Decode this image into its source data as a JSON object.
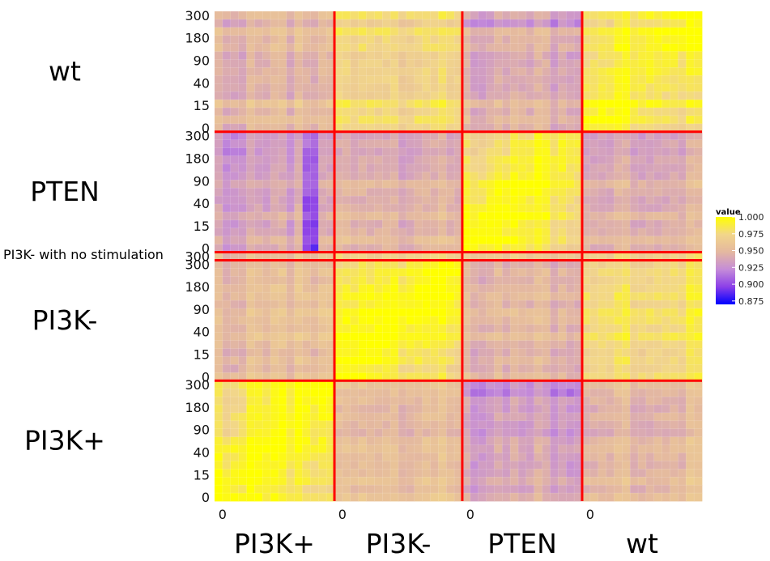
{
  "chart_data": {
    "type": "heatmap",
    "title": "",
    "xlabel": "",
    "ylabel": "",
    "groups": [
      "PI3K+",
      "PI3K-",
      "PTEN",
      "wt"
    ],
    "row_groups_bottom_to_top": [
      {
        "name": "PI3K+",
        "label": "PI3K+",
        "cells": 15,
        "ticks": [
          "0",
          "15",
          "40",
          "90",
          "180",
          "300"
        ]
      },
      {
        "name": "PI3K-",
        "label": "PI3K-",
        "cells": 15,
        "ticks": [
          "0",
          "15",
          "40",
          "90",
          "180",
          "300"
        ]
      },
      {
        "name": "PI3K- nostim",
        "label": "",
        "cells": 1,
        "ticks": [
          "300"
        ]
      },
      {
        "name": "PTEN",
        "label": "PTEN",
        "cells": 15,
        "ticks": [
          "0",
          "15",
          "40",
          "90",
          "180",
          "300"
        ]
      },
      {
        "name": "wt",
        "label": "wt",
        "cells": 15,
        "ticks": [
          "0",
          "15",
          "40",
          "90",
          "180",
          "300"
        ]
      }
    ],
    "col_groups_left_to_right": [
      {
        "name": "PI3K+",
        "label": "PI3K+",
        "cells": 15,
        "tick": "0"
      },
      {
        "name": "PI3K-",
        "label": "PI3K-",
        "cells": 16,
        "tick": "0"
      },
      {
        "name": "PTEN",
        "label": "PTEN",
        "cells": 15,
        "tick": "0"
      },
      {
        "name": "wt",
        "label": "wt",
        "cells": 15,
        "tick": "0"
      }
    ],
    "annotations": [
      "PI3K- with no stimulation"
    ],
    "legend": {
      "title": "value",
      "min": 0.87,
      "max": 1.0,
      "ticks": [
        "1.000",
        "0.975",
        "0.950",
        "0.925",
        "0.900",
        "0.875"
      ],
      "colors": [
        "#0000ff",
        "#8b3fe8",
        "#c58cd8",
        "#e4b8a0",
        "#f2d68a",
        "#ffff00"
      ],
      "placement": "right"
    },
    "block_similarity": {
      "PI3K+": {
        "PI3K+": 0.988,
        "PI3K-": 0.953,
        "PI3K- nostim": 0.945,
        "PTEN": 0.936,
        "wt": 0.95
      },
      "PI3K-": {
        "PI3K+": 0.95,
        "PI3K-": 0.987,
        "PI3K- nostim": 0.962,
        "PTEN": 0.945,
        "wt": 0.975
      },
      "PI3K- nostim": {
        "PI3K+": 0.945,
        "PI3K-": 0.962,
        "PI3K- nostim": 1.0,
        "PTEN": 0.955,
        "wt": 0.962
      },
      "PTEN": {
        "PI3K+": 0.936,
        "PI3K-": 0.945,
        "PI3K- nostim": 0.955,
        "PTEN": 0.988,
        "wt": 0.944
      },
      "wt": {
        "PI3K+": 0.948,
        "PI3K-": 0.974,
        "PI3K- nostim": 0.962,
        "PTEN": 0.944,
        "wt": 0.987
      }
    },
    "minimum_cell_value": 0.873,
    "separator_color": "#ff0000",
    "grid": true
  }
}
